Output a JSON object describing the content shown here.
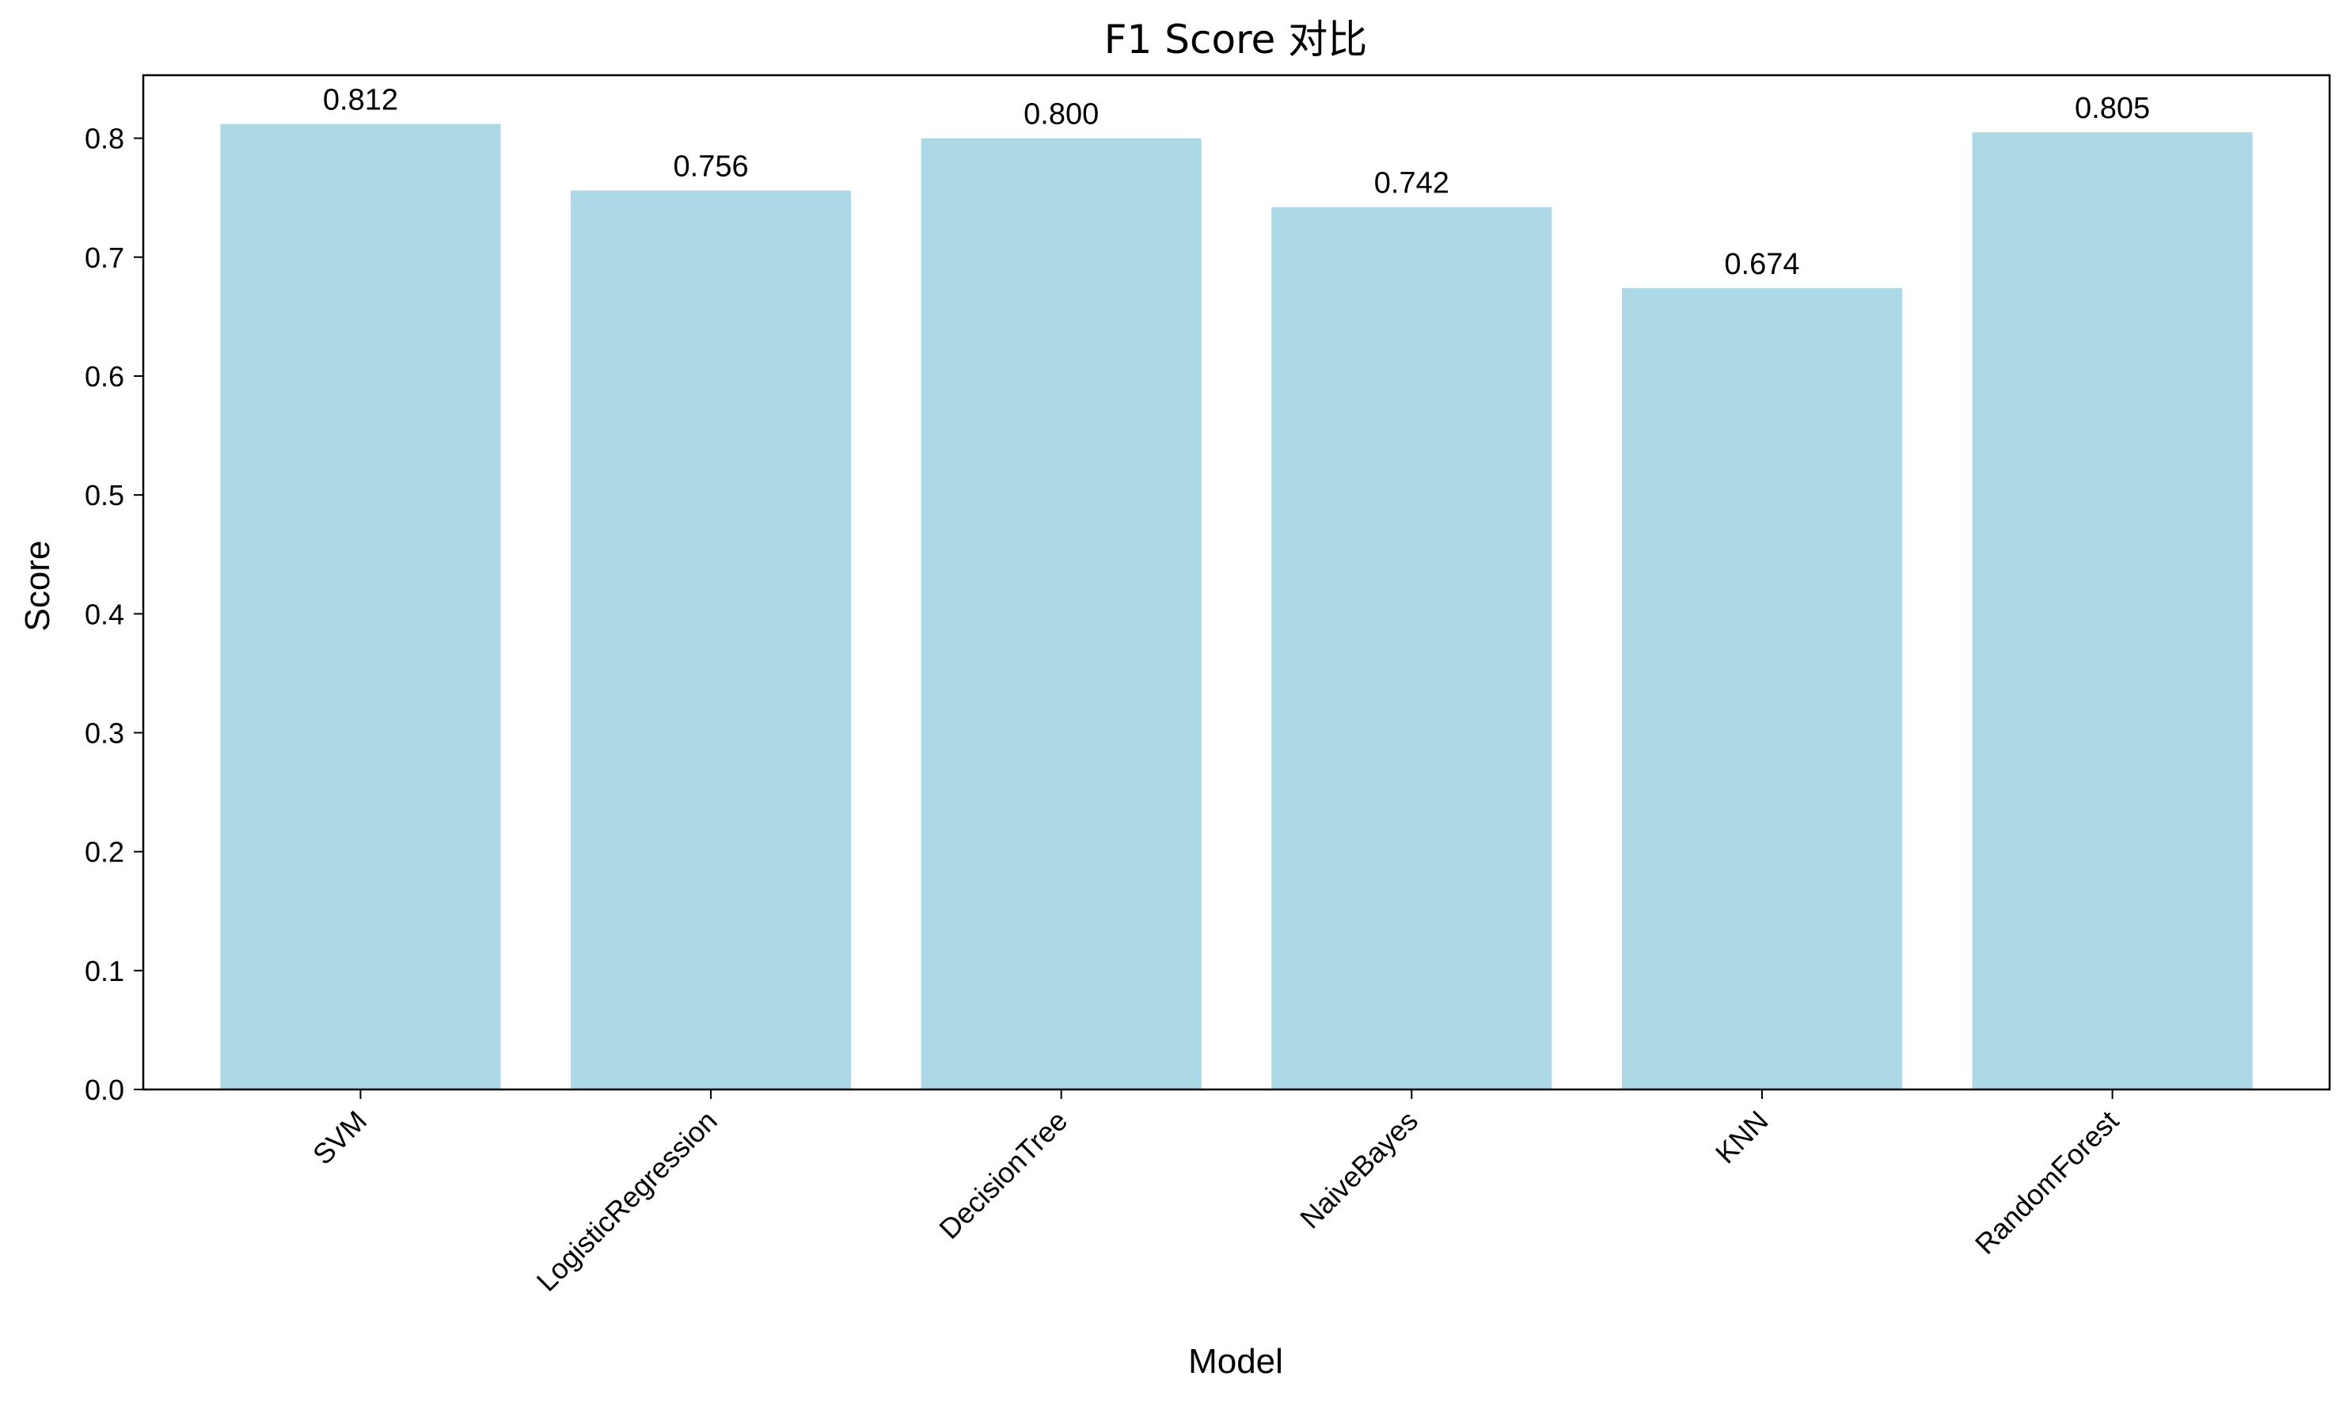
{
  "chart_data": {
    "type": "bar",
    "title": "F1 Score 对比",
    "xlabel": "Model",
    "ylabel": "Score",
    "categories": [
      "SVM",
      "LogisticRegression",
      "DecisionTree",
      "NaiveBayes",
      "KNN",
      "RandomForest"
    ],
    "values": [
      0.812,
      0.756,
      0.8,
      0.742,
      0.674,
      0.805
    ],
    "value_labels": [
      "0.812",
      "0.756",
      "0.800",
      "0.742",
      "0.674",
      "0.805"
    ],
    "ylim": [
      0,
      0.853
    ],
    "yticks": [
      0.0,
      0.1,
      0.2,
      0.3,
      0.4,
      0.5,
      0.6,
      0.7,
      0.8
    ],
    "ytick_labels": [
      "0.0",
      "0.1",
      "0.2",
      "0.3",
      "0.4",
      "0.5",
      "0.6",
      "0.7",
      "0.8"
    ],
    "grid": false,
    "legend": false,
    "colors": {
      "bar": "#add8e6",
      "axes": "#000000",
      "text": "#000000"
    }
  }
}
